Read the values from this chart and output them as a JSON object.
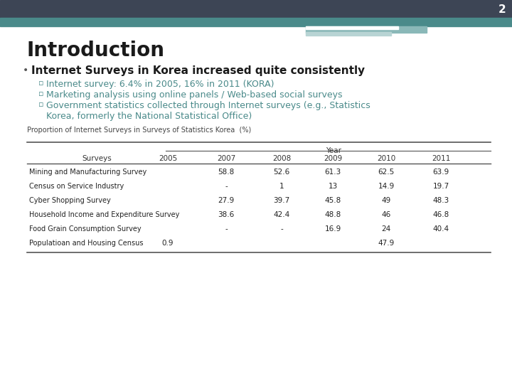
{
  "slide_number": "2",
  "title": "Introduction",
  "bullet_main": "Internet Surveys in Korea increased quite consistently",
  "sub_bullets": [
    "Internet survey: 6.4% in 2005, 16% in 2011 (KORA)",
    "Marketing analysis using online panels / Web-based social surveys",
    "Government statistics collected through Internet surveys (e.g., Statistics\nKorea, formerly the National Statistical Office)"
  ],
  "table_title": "Proportion of Internet Surveys in Surveys of Statistics Korea  (%)",
  "table_header_year": "Year",
  "table_columns": [
    "Surveys",
    "2005",
    "2007",
    "2008",
    "2009",
    "2010",
    "2011"
  ],
  "table_rows": [
    [
      "Mining and Manufacturing Survey",
      "",
      "58.8",
      "52.6",
      "61.3",
      "62.5",
      "63.9"
    ],
    [
      "Census on Service Industry",
      "",
      "-",
      "1",
      "13",
      "14.9",
      "19.7"
    ],
    [
      "Cyber Shopping Survey",
      "",
      "27.9",
      "39.7",
      "45.8",
      "49",
      "48.3"
    ],
    [
      "Household Income and Expenditure Survey",
      "",
      "38.6",
      "42.4",
      "48.8",
      "46",
      "46.8"
    ],
    [
      "Food Grain Consumption Survey",
      "",
      "-",
      "-",
      "16.9",
      "24",
      "40.4"
    ],
    [
      "Populatioan and Housing Census",
      "0.9",
      "",
      "",
      "",
      "47.9",
      ""
    ]
  ],
  "bg_color": "#ffffff",
  "header_dark_color": "#3d4555",
  "header_teal_color": "#4a8a8a",
  "header_light_teal": "#8ab8b8",
  "header_pale_teal": "#b8d4d4",
  "title_color": "#1a1a1a",
  "bullet_main_color": "#1a1a1a",
  "sub_bullet_color": "#4a8a8a",
  "table_title_color": "#444444",
  "slide_num_color": "#ffffff",
  "table_line_color": "#555555"
}
